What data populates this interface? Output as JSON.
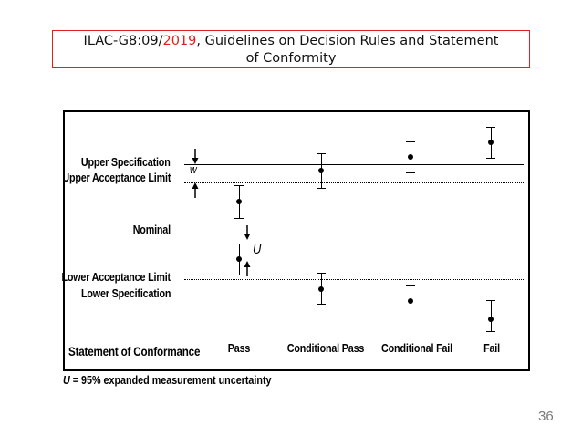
{
  "title": {
    "prefix": "ILAC-G8:09/",
    "year": "2019",
    "rest": ",  Guidelines on Decision Rules and Statement",
    "line2": "of Conformity"
  },
  "labels": {
    "upper_spec": "Upper Specification",
    "upper_accept": "Upper Acceptance Limit",
    "nominal": "Nominal",
    "lower_accept": "Lower Acceptance Limit",
    "lower_spec": "Lower Specification",
    "w": "w",
    "u": "U"
  },
  "conformance": {
    "heading": "Statement of Conformance",
    "categories": [
      "Pass",
      "Conditional Pass",
      "Conditional Fail",
      "Fail"
    ]
  },
  "footnote": {
    "symbol": "U",
    "text": " = 95% expanded measurement uncertainty"
  },
  "page_number": "36"
}
